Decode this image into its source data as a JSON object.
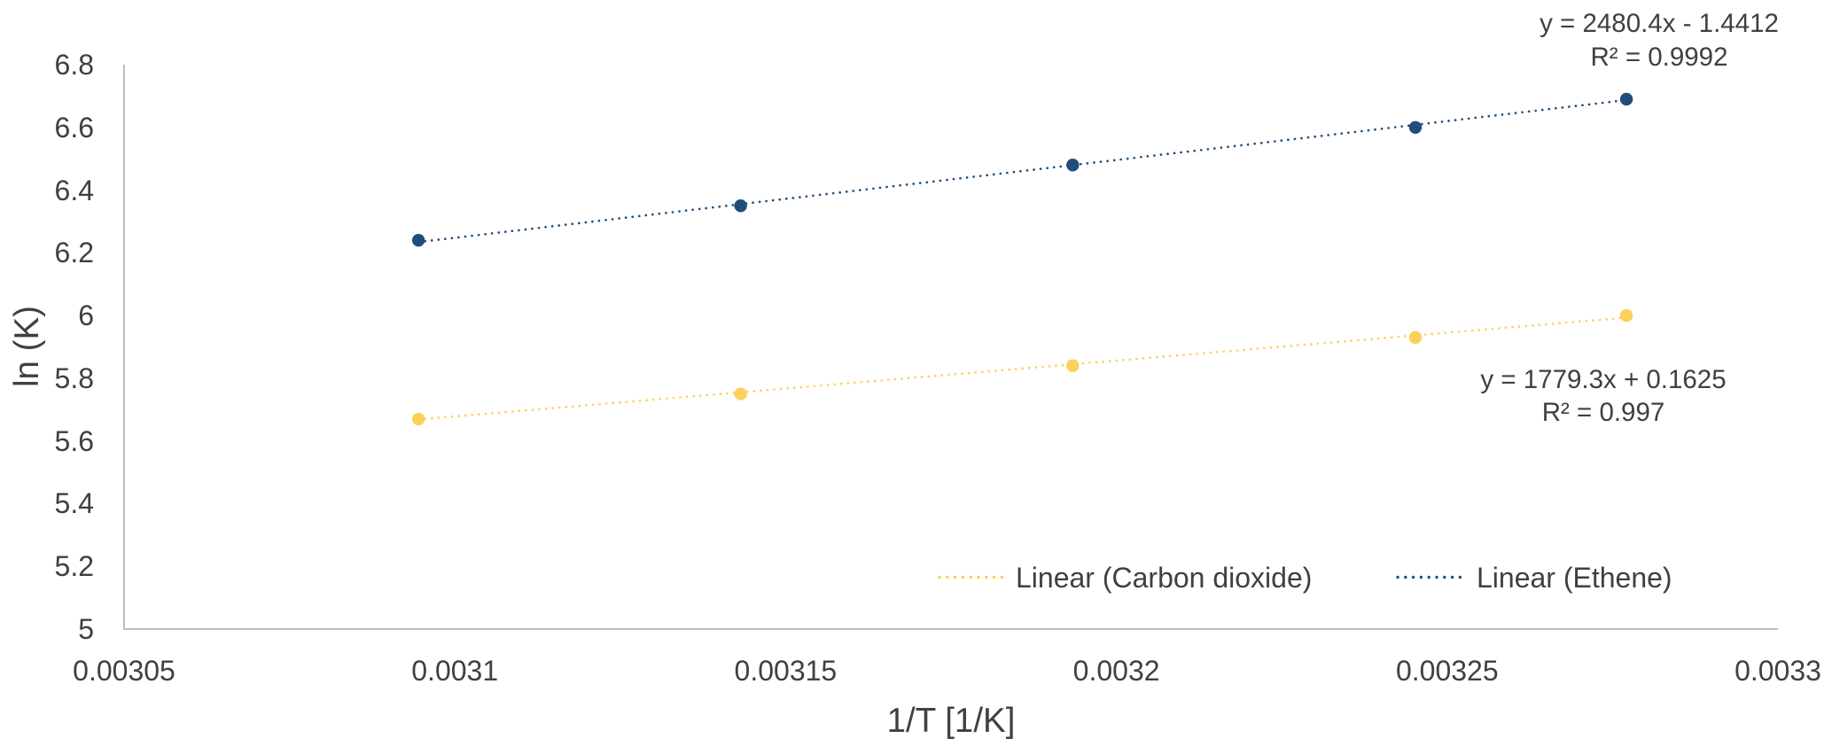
{
  "chart_data": {
    "type": "scatter",
    "title": "",
    "xlabel": "1/T [1/K]",
    "ylabel": "ln (K)",
    "xlim": [
      0.00305,
      0.0033
    ],
    "ylim": [
      5,
      6.8
    ],
    "x_ticks": [
      "0.00305",
      "0.0031",
      "0.00315",
      "0.0032",
      "0.00325",
      "0.0033"
    ],
    "y_ticks": [
      "6.8",
      "6.6",
      "6.4",
      "6.2",
      "6",
      "5.8",
      "5.6",
      "5.4",
      "5.2",
      "5"
    ],
    "grid": false,
    "axis_line_color": "#BFBFBF",
    "text_color": "#404040",
    "series": [
      {
        "name": "Carbon dioxide",
        "color": "#FBD15B",
        "marker": "circle",
        "x": [
          0.0030945,
          0.0031432,
          0.0031934,
          0.0032452,
          0.0032771
        ],
        "y": [
          5.67,
          5.75,
          5.84,
          5.93,
          6.0
        ],
        "trendline": {
          "style": "dotted",
          "slope": 1779.3,
          "intercept": 0.1625,
          "equation": "y = 1779.3x + 0.1625",
          "r_squared": "R² = 0.997"
        }
      },
      {
        "name": "Ethene",
        "color": "#1F4E79",
        "marker": "circle",
        "x": [
          0.0030945,
          0.0031432,
          0.0031934,
          0.0032452,
          0.0032771
        ],
        "y": [
          6.24,
          6.35,
          6.48,
          6.6,
          6.69
        ],
        "trendline": {
          "style": "dotted",
          "slope": 2480.4,
          "intercept": -1.4412,
          "equation": "y = 2480.4x - 1.4412",
          "r_squared": "R² = 0.9992"
        }
      }
    ],
    "legend": {
      "position": "bottom-inside",
      "entries": [
        "Linear (Carbon dioxide)",
        "Linear (Ethene)"
      ]
    }
  }
}
